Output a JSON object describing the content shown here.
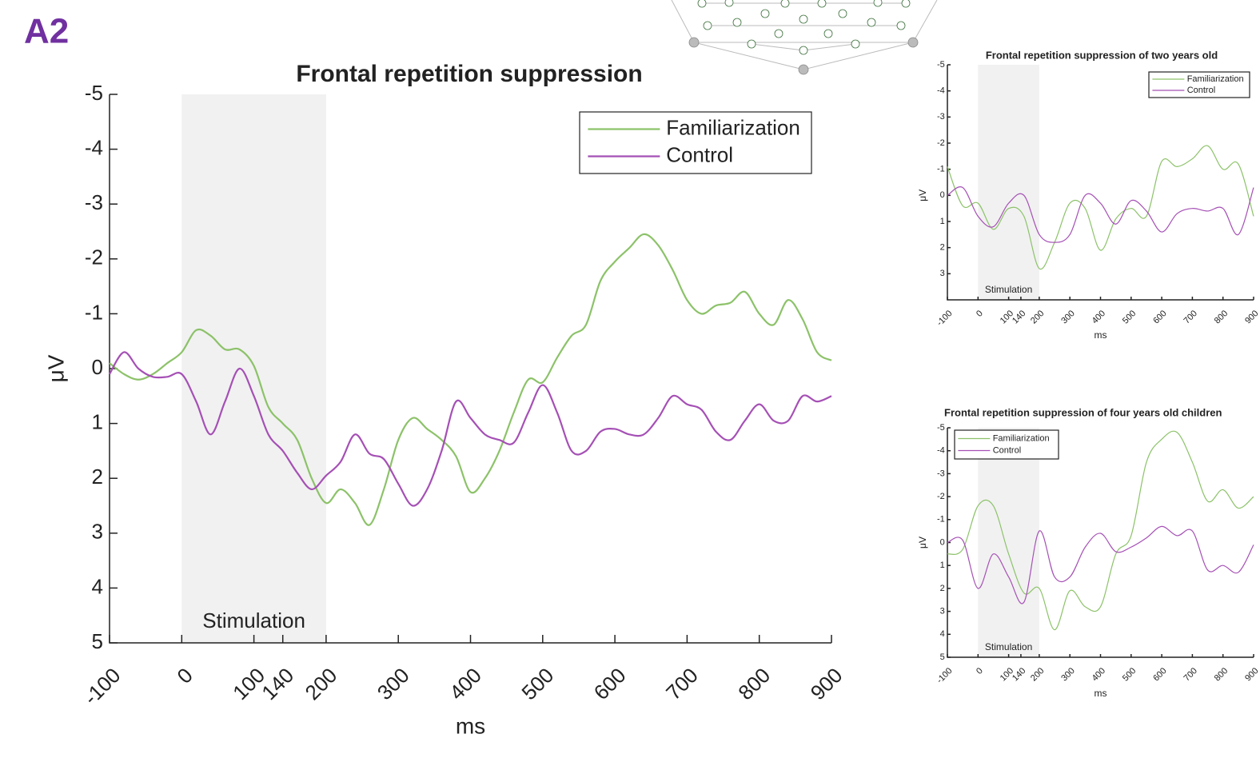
{
  "panel_label": "A2",
  "chart_data": [
    {
      "type": "line",
      "title": "Frontal repetition suppression",
      "xlabel": "ms",
      "ylabel": "μV",
      "xlim": [
        -100,
        900
      ],
      "xticks": [
        -100,
        0,
        100,
        140,
        200,
        300,
        400,
        500,
        600,
        700,
        800,
        900
      ],
      "ylim": [
        -5,
        5
      ],
      "yticks": [
        -5,
        -4,
        -3,
        -2,
        -1,
        0,
        1,
        2,
        3,
        4,
        5
      ],
      "y_inverted": true,
      "shade": [
        0,
        200
      ],
      "shade_label": "Stimulation",
      "legend": "upper right",
      "x": [
        -100,
        -80,
        -60,
        -40,
        -20,
        0,
        20,
        40,
        60,
        80,
        100,
        120,
        140,
        160,
        180,
        200,
        220,
        240,
        260,
        280,
        300,
        320,
        340,
        360,
        380,
        400,
        420,
        440,
        460,
        480,
        500,
        520,
        540,
        560,
        580,
        600,
        620,
        640,
        660,
        680,
        700,
        720,
        740,
        760,
        780,
        800,
        820,
        840,
        860,
        880,
        900
      ],
      "series": [
        {
          "name": "Familiarization",
          "color": "#8cc269",
          "values": [
            -0.1,
            0.1,
            0.2,
            0.1,
            -0.1,
            -0.3,
            -0.7,
            -0.6,
            -0.35,
            -0.35,
            -0.05,
            0.7,
            1.0,
            1.3,
            2.0,
            2.45,
            2.2,
            2.45,
            2.85,
            2.2,
            1.3,
            0.9,
            1.1,
            1.3,
            1.6,
            2.25,
            2.0,
            1.5,
            0.8,
            0.2,
            0.25,
            -0.2,
            -0.6,
            -0.8,
            -1.6,
            -1.95,
            -2.2,
            -2.45,
            -2.25,
            -1.8,
            -1.25,
            -1.0,
            -1.15,
            -1.2,
            -1.4,
            -1.0,
            -0.8,
            -1.25,
            -0.9,
            -0.3,
            -0.15
          ]
        },
        {
          "name": "Control",
          "color": "#a550b5",
          "values": [
            0.1,
            -0.3,
            0.0,
            0.15,
            0.15,
            0.1,
            0.6,
            1.2,
            0.6,
            0.0,
            0.5,
            1.2,
            1.5,
            1.9,
            2.2,
            1.95,
            1.7,
            1.2,
            1.55,
            1.65,
            2.1,
            2.5,
            2.2,
            1.5,
            0.6,
            0.9,
            1.2,
            1.3,
            1.35,
            0.8,
            0.3,
            0.8,
            1.5,
            1.5,
            1.15,
            1.1,
            1.2,
            1.2,
            0.9,
            0.5,
            0.65,
            0.75,
            1.15,
            1.3,
            0.95,
            0.65,
            0.95,
            0.95,
            0.5,
            0.6,
            0.5
          ]
        }
      ]
    },
    {
      "type": "line",
      "title": "Frontal repetition suppression of two years old",
      "xlabel": "ms",
      "ylabel": "μV",
      "xlim": [
        -100,
        900
      ],
      "xticks": [
        -100,
        0,
        100,
        140,
        200,
        300,
        400,
        500,
        600,
        700,
        800,
        900
      ],
      "ylim": [
        -5,
        4
      ],
      "yticks": [
        -5,
        -4,
        -3,
        -2,
        -1,
        0,
        1,
        2,
        3
      ],
      "y_inverted": true,
      "shade": [
        0,
        200
      ],
      "shade_label": "Stimulation",
      "legend": "upper right",
      "x": [
        -100,
        -50,
        0,
        50,
        100,
        150,
        200,
        250,
        300,
        350,
        400,
        450,
        500,
        550,
        600,
        650,
        700,
        750,
        800,
        850,
        900
      ],
      "series": [
        {
          "name": "Familiarization",
          "color": "#8cc269",
          "values": [
            -1.1,
            0.4,
            0.3,
            1.3,
            0.5,
            0.8,
            2.8,
            1.8,
            0.3,
            0.5,
            2.1,
            0.9,
            0.5,
            0.8,
            -1.3,
            -1.1,
            -1.4,
            -1.9,
            -1.0,
            -1.2,
            0.8
          ]
        },
        {
          "name": "Control",
          "color": "#a550b5",
          "values": [
            0.0,
            -0.3,
            0.8,
            1.2,
            0.3,
            0.0,
            1.5,
            1.8,
            1.5,
            0.0,
            0.3,
            1.1,
            0.2,
            0.6,
            1.4,
            0.7,
            0.5,
            0.6,
            0.5,
            1.5,
            -0.3
          ]
        }
      ]
    },
    {
      "type": "line",
      "title": "Frontal repetition suppression of four years old children",
      "xlabel": "ms",
      "ylabel": "μV",
      "xlim": [
        -100,
        900
      ],
      "xticks": [
        -100,
        0,
        100,
        140,
        200,
        300,
        400,
        500,
        600,
        700,
        800,
        900
      ],
      "ylim": [
        -5,
        5
      ],
      "yticks": [
        -5,
        -4,
        -3,
        -2,
        -1,
        0,
        1,
        2,
        3,
        4,
        5
      ],
      "y_inverted": true,
      "shade": [
        0,
        200
      ],
      "shade_label": "Stimulation",
      "legend": "upper left",
      "x": [
        -100,
        -50,
        0,
        50,
        100,
        150,
        200,
        250,
        300,
        350,
        400,
        450,
        500,
        550,
        600,
        650,
        700,
        750,
        800,
        850,
        900
      ],
      "series": [
        {
          "name": "Familiarization",
          "color": "#8cc269",
          "values": [
            0.5,
            0.3,
            -1.6,
            -1.6,
            0.5,
            2.2,
            2.0,
            3.8,
            2.1,
            2.8,
            2.8,
            0.5,
            -0.3,
            -3.5,
            -4.5,
            -4.8,
            -3.5,
            -1.8,
            -2.3,
            -1.5,
            -2.0
          ]
        },
        {
          "name": "Control",
          "color": "#a550b5",
          "values": [
            0.0,
            -0.1,
            2.0,
            0.5,
            1.5,
            2.6,
            -0.5,
            1.5,
            1.5,
            0.2,
            -0.4,
            0.4,
            0.2,
            -0.2,
            -0.7,
            -0.3,
            -0.5,
            1.2,
            1.0,
            1.3,
            0.1
          ]
        }
      ]
    }
  ]
}
